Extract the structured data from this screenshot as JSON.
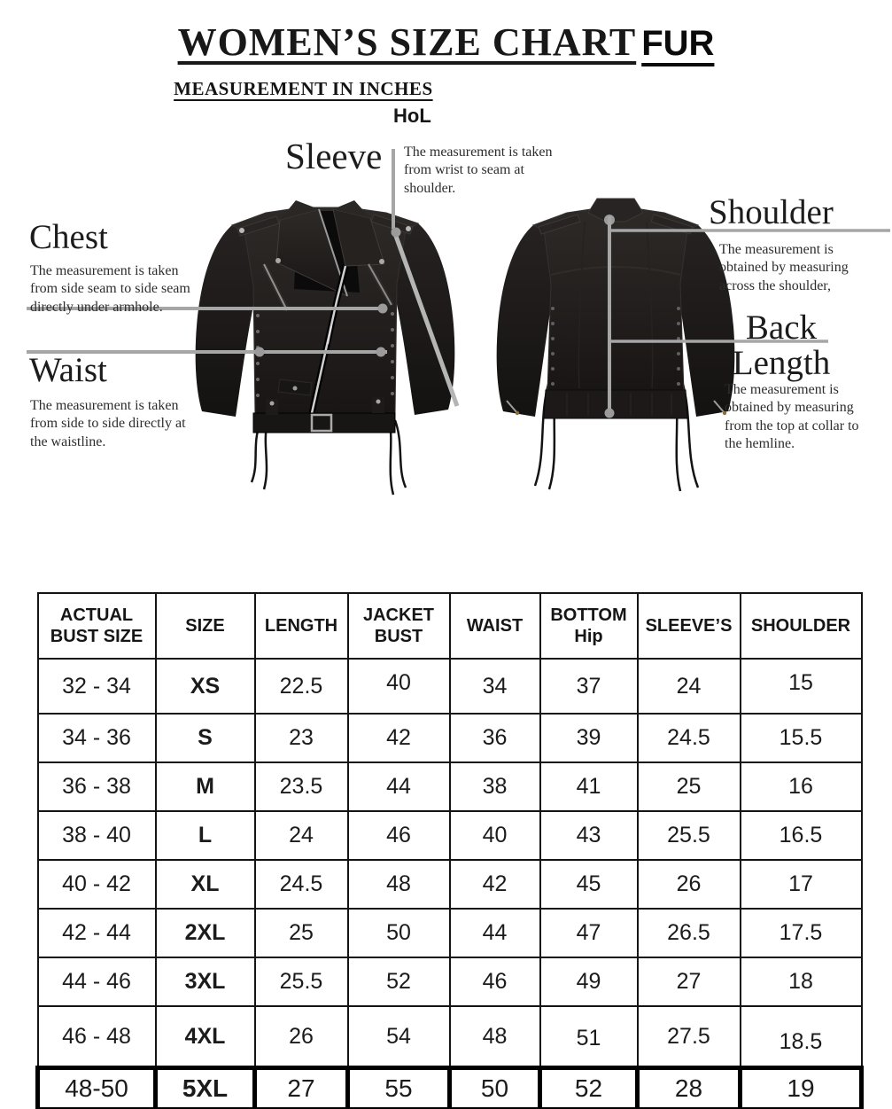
{
  "title": {
    "main": "WOMEN’S SIZE CHART",
    "suffix": "FUR"
  },
  "subtitle": "MEASUREMENT IN INCHES",
  "brand": "HoL",
  "annotations": {
    "sleeve": {
      "label": "Sleeve",
      "desc": "The measurement is taken from wrist to seam at shoulder."
    },
    "chest": {
      "label": "Chest",
      "desc": "The measurement is taken from side seam to side seam directly under armhole."
    },
    "waist": {
      "label": "Waist",
      "desc": "The measurement is taken from side to side directly at the waistline."
    },
    "shoulder": {
      "label": "Shoulder",
      "desc": "The measurement is obtained by measuring across the shoulder,"
    },
    "back_length": {
      "label_line1": "Back",
      "label_line2": "Length",
      "desc": "The measurement is obtained by measuring from the top at collar to the hemline."
    }
  },
  "table": {
    "headers": [
      "ACTUAL\nBUST SIZE",
      "SIZE",
      "LENGTH",
      "JACKET\nBUST",
      "WAIST",
      "BOTTOM\nHip",
      "SLEEVE’S",
      "SHOULDER"
    ],
    "rows": [
      [
        "32 - 34",
        "XS",
        "22.5",
        "40",
        "34",
        "37",
        "24",
        "15"
      ],
      [
        "34 - 36",
        "S",
        "23",
        "42",
        "36",
        "39",
        "24.5",
        "15.5"
      ],
      [
        "36 - 38",
        "M",
        "23.5",
        "44",
        "38",
        "41",
        "25",
        "16"
      ],
      [
        "38 - 40",
        "L",
        "24",
        "46",
        "40",
        "43",
        "25.5",
        "16.5"
      ],
      [
        "40 - 42",
        "XL",
        "24.5",
        "48",
        "42",
        "45",
        "26",
        "17"
      ],
      [
        "42 - 44",
        "2XL",
        "25",
        "50",
        "44",
        "47",
        "26.5",
        "17.5"
      ],
      [
        "44 - 46",
        "3XL",
        "25.5",
        "52",
        "46",
        "49",
        "27",
        "18"
      ],
      [
        "46 - 48",
        "4XL",
        "26",
        "54",
        "48",
        "51",
        "27.5",
        "18.5"
      ],
      [
        "48-50",
        "5XL",
        "27",
        "55",
        "50",
        "52",
        "28",
        "19"
      ]
    ]
  },
  "colors": {
    "measure_line": "#a6a6a6",
    "jacket_dark": "#1d1a19",
    "zipper_silver": "#cfcfcf"
  }
}
